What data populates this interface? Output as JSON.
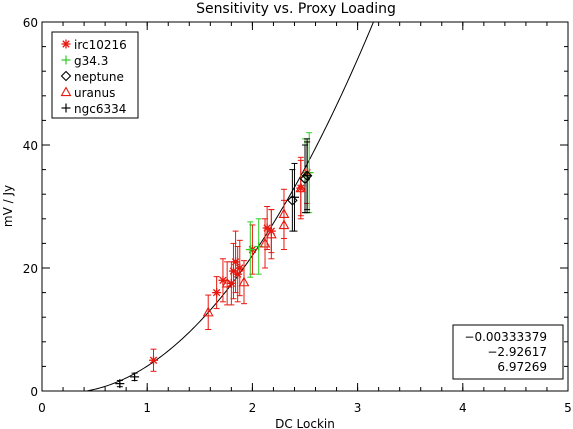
{
  "chart_data": {
    "type": "scatter",
    "title": "Sensitivity vs. Proxy Loading",
    "xlabel": "DC Lockin",
    "ylabel": "mV / Jy",
    "xlim": [
      0,
      5
    ],
    "ylim": [
      0,
      60
    ],
    "x_ticks": [
      "0",
      "1",
      "2",
      "3",
      "4",
      "5"
    ],
    "y_ticks": [
      "0",
      "20",
      "40",
      "60"
    ],
    "grid": false,
    "legend_position": "top-left",
    "fit_coefficients": [
      "−0.00333379",
      "−2.92617",
      "6.97269"
    ],
    "fit_curve": {
      "a": -0.00333379,
      "b": -2.92617,
      "c": 6.97269,
      "x_start": 0.43,
      "x_end": 3.2
    },
    "series": [
      {
        "name": "irc10216",
        "marker": "asterisk",
        "color": "#e8190f",
        "points": [
          {
            "x": 1.06,
            "y": 5.0,
            "err": 1.8
          },
          {
            "x": 1.66,
            "y": 16.0,
            "err": 2.6
          },
          {
            "x": 1.72,
            "y": 18.0,
            "err": 3.5
          },
          {
            "x": 1.8,
            "y": 17.5,
            "err": 3.5
          },
          {
            "x": 1.82,
            "y": 19.5,
            "err": 4.5
          },
          {
            "x": 1.84,
            "y": 21.0,
            "err": 5.0
          },
          {
            "x": 1.86,
            "y": 19.0,
            "err": 4.5
          },
          {
            "x": 1.88,
            "y": 20.0,
            "err": 4.5
          },
          {
            "x": 2.0,
            "y": 23.0,
            "err": 4.0
          },
          {
            "x": 2.14,
            "y": 26.5,
            "err": 3.5
          },
          {
            "x": 2.18,
            "y": 26.0,
            "err": 3.5
          },
          {
            "x": 2.46,
            "y": 33.0,
            "err": 5.0
          },
          {
            "x": 2.52,
            "y": 35.5,
            "err": 5.0
          }
        ]
      },
      {
        "name": "g34.3",
        "marker": "plus",
        "color": "#2ecc24",
        "points": [
          {
            "x": 1.98,
            "y": 23.0,
            "err": 4.5
          },
          {
            "x": 2.06,
            "y": 23.5,
            "err": 4.5
          },
          {
            "x": 2.5,
            "y": 35.0,
            "err": 6.0
          },
          {
            "x": 2.54,
            "y": 35.5,
            "err": 6.5
          }
        ]
      },
      {
        "name": "neptune",
        "marker": "diamond",
        "color": "#000000",
        "points": [
          {
            "x": 2.38,
            "y": 31.0,
            "err": 5.0
          },
          {
            "x": 2.5,
            "y": 34.5,
            "err": 5.5
          },
          {
            "x": 2.52,
            "y": 35.0,
            "err": 5.5
          }
        ]
      },
      {
        "name": "uranus",
        "marker": "triangle",
        "color": "#e8190f",
        "points": [
          {
            "x": 1.58,
            "y": 12.8,
            "err": 2.8
          },
          {
            "x": 1.76,
            "y": 17.5,
            "err": 3.5
          },
          {
            "x": 1.92,
            "y": 17.7,
            "err": 3.5
          },
          {
            "x": 2.12,
            "y": 24.0,
            "err": 4.0
          },
          {
            "x": 2.18,
            "y": 25.5,
            "err": 4.0
          },
          {
            "x": 2.3,
            "y": 27.0,
            "err": 4.0
          },
          {
            "x": 2.3,
            "y": 28.8,
            "err": 4.0
          },
          {
            "x": 2.46,
            "y": 33.0,
            "err": 4.5
          }
        ]
      },
      {
        "name": "ngc6334",
        "marker": "plus",
        "color": "#000000",
        "points": [
          {
            "x": 0.74,
            "y": 1.2,
            "err": 0.5
          },
          {
            "x": 0.88,
            "y": 2.3,
            "err": 0.6
          },
          {
            "x": 2.4,
            "y": 31.5,
            "err": 5.5
          },
          {
            "x": 2.52,
            "y": 35.0,
            "err": 6.0
          }
        ]
      }
    ]
  }
}
